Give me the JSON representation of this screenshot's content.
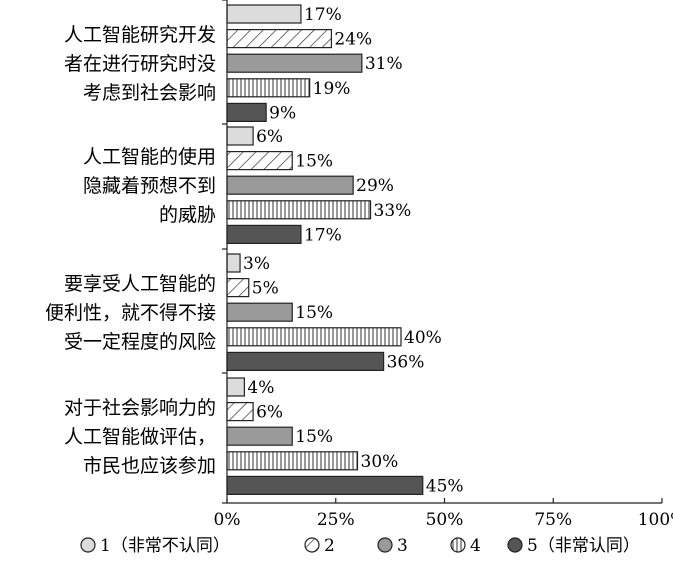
{
  "chart_data": {
    "type": "bar",
    "orientation": "horizontal",
    "categories": [
      [
        "人工智能研究开发",
        "者在进行研究时没",
        "考虑到社会影响"
      ],
      [
        "人工智能的使用",
        "隐藏着预想不到",
        "的威胁"
      ],
      [
        "要享受人工智能的",
        "便利性，就不得不接",
        "受一定程度的风险"
      ],
      [
        "对于社会影响力的",
        "人工智能做评估，",
        "市民也应该参加"
      ]
    ],
    "series": [
      {
        "name": "1（非常不认同）",
        "values": [
          17,
          6,
          3,
          4
        ],
        "pattern": "light"
      },
      {
        "name": "2",
        "values": [
          24,
          15,
          5,
          6
        ],
        "pattern": "hatch"
      },
      {
        "name": "3",
        "values": [
          31,
          29,
          15,
          15
        ],
        "pattern": "medium"
      },
      {
        "name": "4",
        "values": [
          19,
          33,
          40,
          30
        ],
        "pattern": "vertical"
      },
      {
        "name": "5（非常认同）",
        "values": [
          9,
          17,
          36,
          45
        ],
        "pattern": "dark"
      }
    ],
    "value_suffix": "%",
    "xlim": [
      0,
      100
    ],
    "xticks": [
      "0%",
      "25%",
      "50%",
      "75%",
      "100%"
    ],
    "legend_position": "bottom",
    "grid": false
  }
}
